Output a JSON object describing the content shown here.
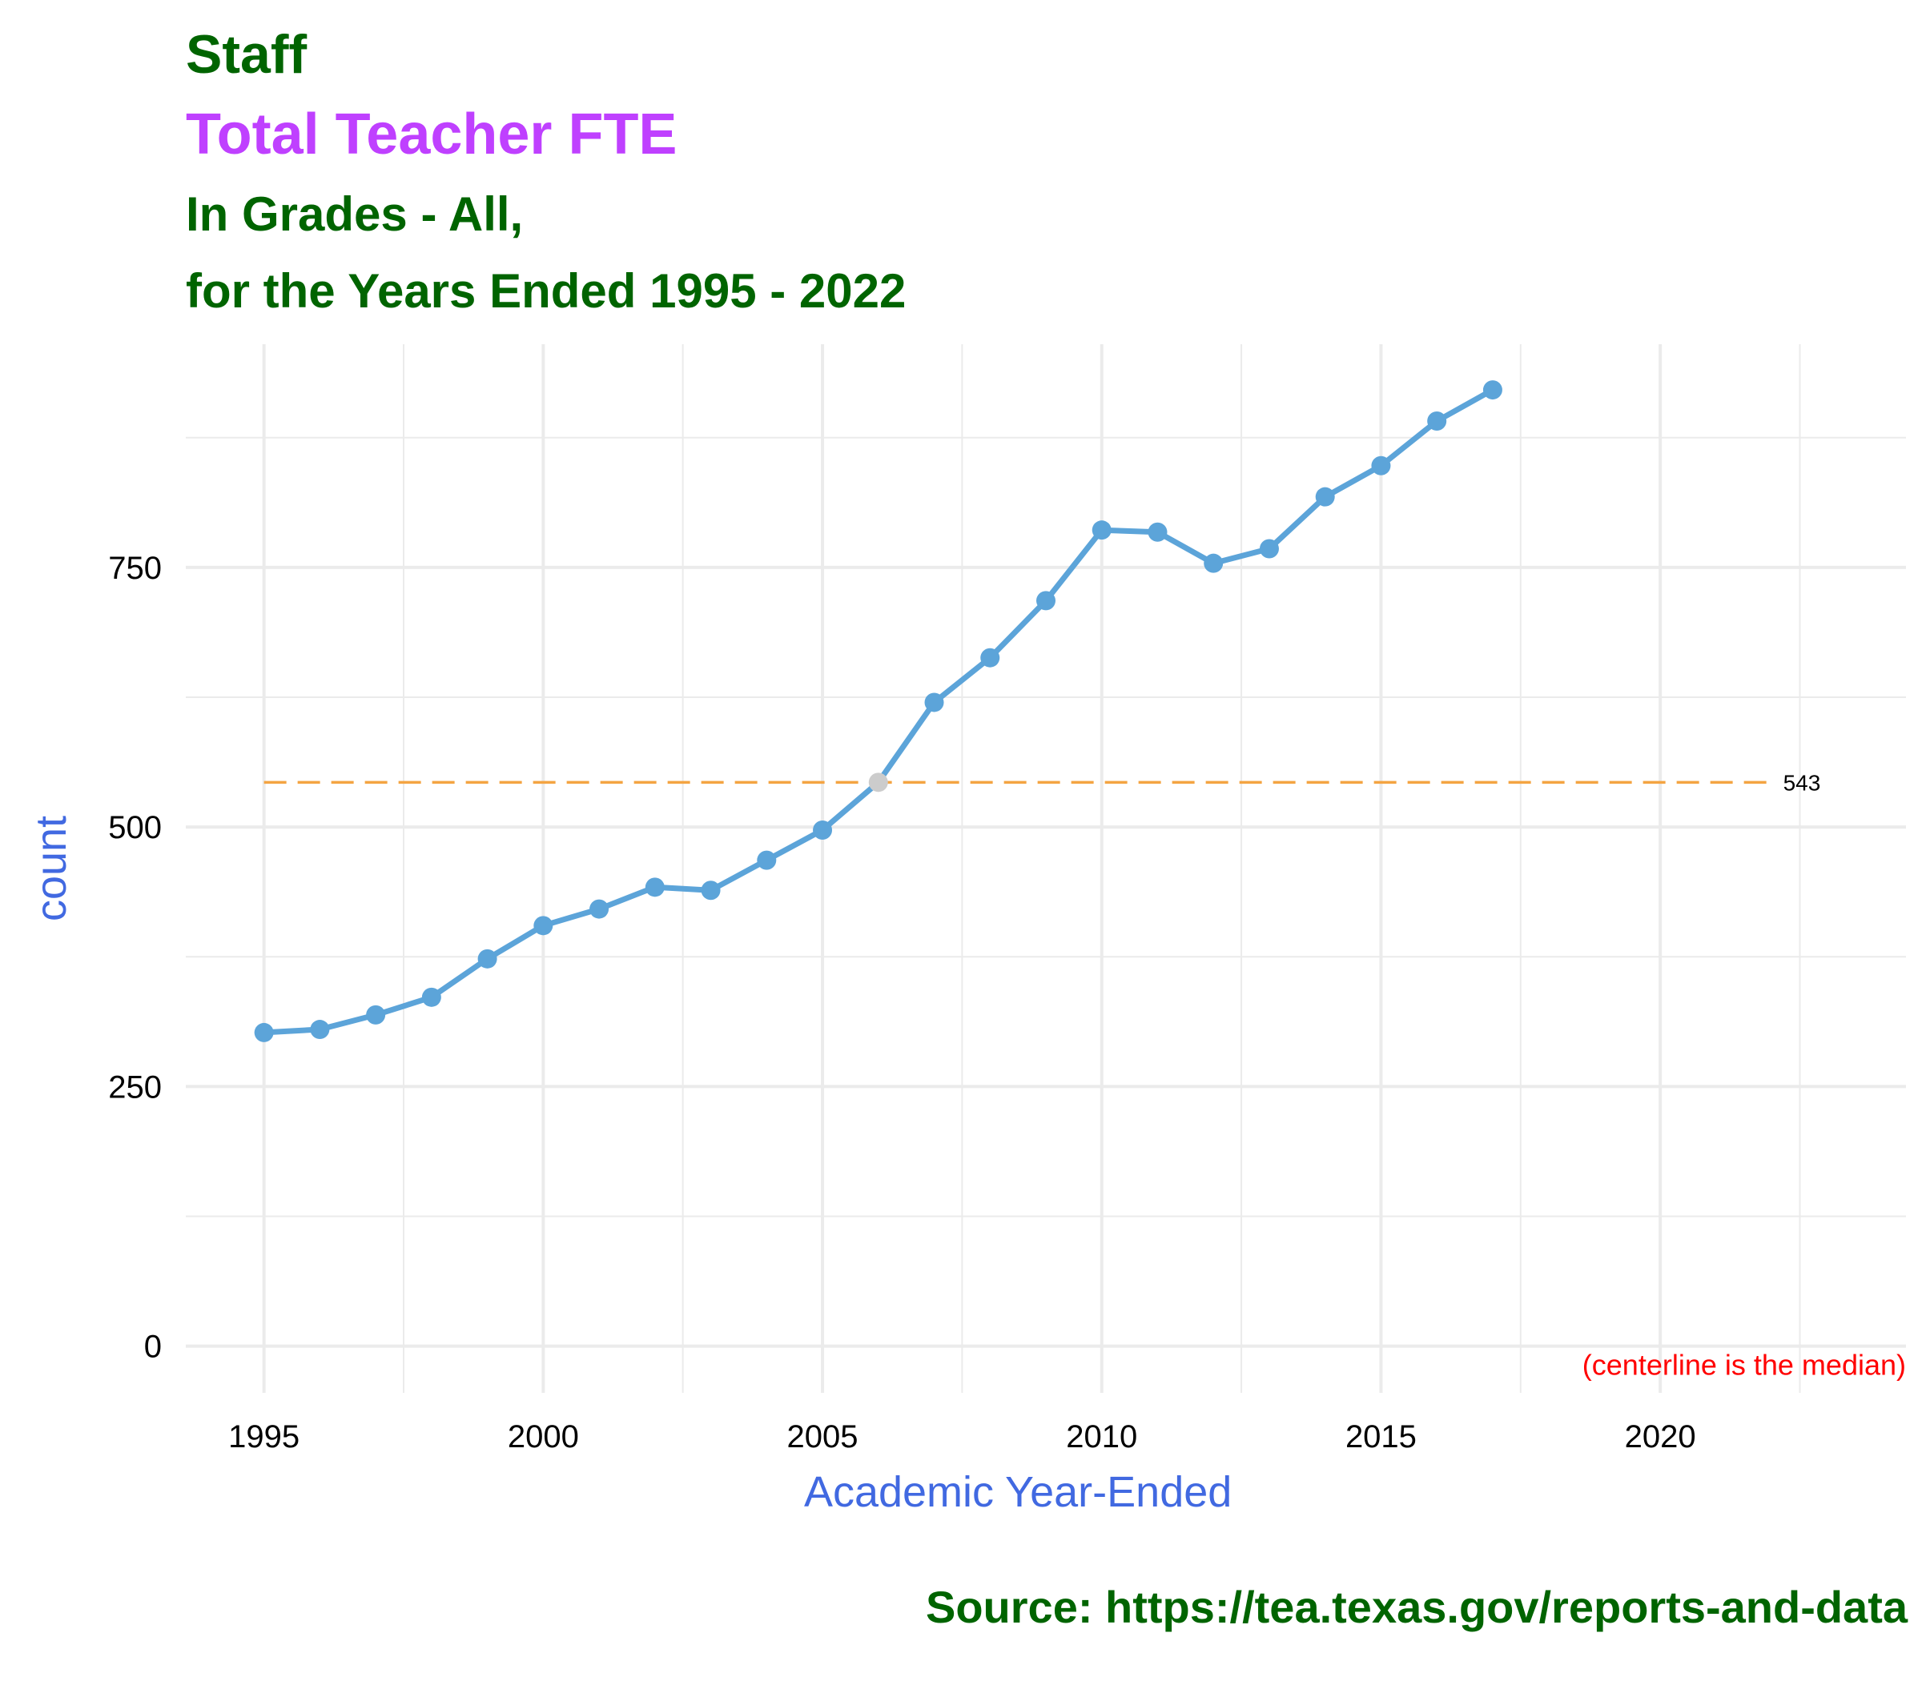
{
  "header": {
    "line1": "Staff",
    "line2": "Total Teacher FTE",
    "line3": "In Grades - All,",
    "line4": "for the Years Ended 1995 - 2022"
  },
  "source": "Source:  https://tea.texas.gov/reports-and-data",
  "colors": {
    "line": "#5ca4d9",
    "point": "#5ca4d9",
    "highlight_point": "#cccccc",
    "centerline": "#f4a442",
    "grid": "#ebebeb",
    "title_green": "#006400",
    "title_purple": "#bf40ff",
    "axis_title": "#4169e1",
    "note": "#ff0000"
  },
  "chart_data": {
    "type": "line",
    "xlabel": "Academic Year-Ended",
    "ylabel": "count",
    "xlim": [
      1993.6,
      2024.4
    ],
    "ylim": [
      -45,
      965
    ],
    "x_ticks": [
      1995,
      2000,
      2005,
      2010,
      2015,
      2020
    ],
    "x_tick_labels": [
      "1995",
      "2000",
      "2005",
      "2010",
      "2015",
      "2020"
    ],
    "y_ticks": [
      0,
      250,
      500,
      750
    ],
    "y_tick_labels": [
      "0",
      "250",
      "500",
      "750"
    ],
    "x_minor_ticks": [
      1997.5,
      2002.5,
      2007.5,
      2012.5,
      2017.5,
      2022.5
    ],
    "y_minor_ticks": [
      125,
      375,
      625,
      875
    ],
    "grid": true,
    "legend": "none",
    "series": [
      {
        "x": [
          1995,
          1996,
          1997,
          1998,
          1999,
          2000,
          2001,
          2002,
          2003,
          2004,
          2005,
          2006,
          2007,
          2008,
          2009,
          2010,
          2011,
          2012,
          2013,
          2014,
          2015,
          2016,
          2017
        ],
        "values": [
          302,
          305,
          319,
          336,
          373,
          405,
          421,
          442,
          439,
          468,
          497,
          543,
          620,
          663,
          718,
          786,
          784,
          754,
          768,
          818,
          848,
          891,
          921
        ]
      }
    ],
    "highlight_point": {
      "x": 2006,
      "y": 543
    },
    "centerline": {
      "value": 543,
      "label": "543",
      "x_start": 1995,
      "x_end": 2022
    },
    "note": "(centerline is the median)"
  }
}
